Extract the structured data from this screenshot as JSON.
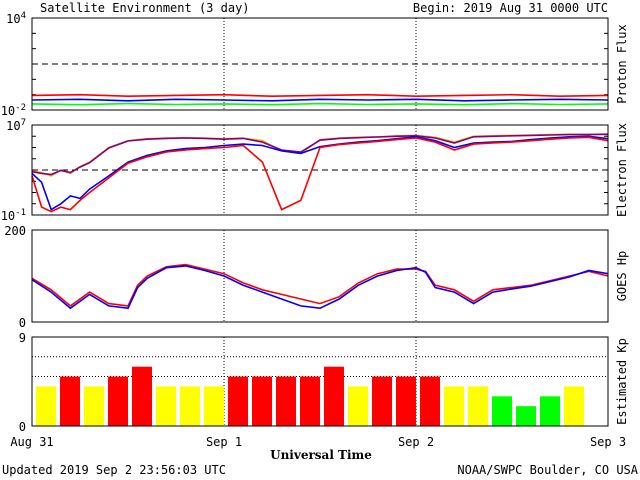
{
  "header": {
    "title": "Satellite Environment (3 day)",
    "begin": "Begin:  2019 Aug 31 0000 UTC"
  },
  "footer": {
    "updated": "Updated 2019 Sep  2 23:56:03 UTC",
    "source": "NOAA/SWPC Boulder, CO USA"
  },
  "colors": {
    "red": "#ff0000",
    "blue": "#0000ff",
    "green": "#00ff00",
    "orange": "#ffa500",
    "purple": "#800080",
    "yellow": "#ffff00"
  },
  "chart_data": [
    {
      "type": "line",
      "name": "proton",
      "ylabel": "Proton Flux",
      "yscale": "log",
      "ylim": [
        0.01,
        10000
      ],
      "ytick_labels": [
        {
          "base": "10",
          "exp": "4",
          "value": 10000
        },
        {
          "base": "10",
          "exp": "-2",
          "value": 0.01
        }
      ],
      "threshold": 10,
      "x": [
        0,
        0.25,
        0.5,
        0.75,
        1.0,
        1.25,
        1.5,
        1.75,
        2.0,
        2.25,
        2.5,
        2.75,
        3.0
      ],
      "series": [
        {
          "color": "red",
          "values": [
            0.09,
            0.1,
            0.08,
            0.09,
            0.1,
            0.08,
            0.09,
            0.1,
            0.08,
            0.09,
            0.1,
            0.08,
            0.09
          ]
        },
        {
          "color": "blue",
          "values": [
            0.045,
            0.05,
            0.04,
            0.05,
            0.045,
            0.04,
            0.05,
            0.045,
            0.05,
            0.04,
            0.045,
            0.05,
            0.045
          ]
        },
        {
          "color": "green",
          "values": [
            0.025,
            0.022,
            0.026,
            0.023,
            0.025,
            0.022,
            0.026,
            0.023,
            0.025,
            0.022,
            0.026,
            0.023,
            0.025
          ]
        }
      ]
    },
    {
      "type": "line",
      "name": "electron",
      "ylabel": "Electron Flux",
      "yscale": "log",
      "ylim": [
        0.1,
        10000000
      ],
      "ytick_labels": [
        {
          "base": "10",
          "exp": "7",
          "value": 10000000
        },
        {
          "base": "10",
          "exp": "-1",
          "value": 0.1
        }
      ],
      "threshold": 1000,
      "x": [
        0,
        0.05,
        0.1,
        0.15,
        0.2,
        0.25,
        0.3,
        0.4,
        0.5,
        0.6,
        0.7,
        0.8,
        0.9,
        1.0,
        1.1,
        1.2,
        1.3,
        1.4,
        1.5,
        1.6,
        1.7,
        1.8,
        1.9,
        2.0,
        2.1,
        2.2,
        2.3,
        2.4,
        2.5,
        2.6,
        2.7,
        2.8,
        2.9,
        3.0
      ],
      "series": [
        {
          "color": "orange",
          "values": [
            800,
            600,
            300,
            1000,
            500,
            2000,
            5000,
            100000,
            400000,
            600000,
            700000,
            750000,
            700000,
            600000,
            700000,
            400000,
            50000,
            30000,
            500000,
            700000,
            800000,
            900000,
            1100000,
            1200000,
            800000,
            300000,
            1000000,
            1100000,
            1200000,
            1300000,
            1400000,
            1500000,
            1500000,
            1600000
          ]
        },
        {
          "color": "purple",
          "values": [
            700,
            500,
            400,
            900,
            600,
            1800,
            4500,
            90000,
            380000,
            550000,
            650000,
            700000,
            650000,
            550000,
            650000,
            300000,
            60000,
            40000,
            450000,
            650000,
            750000,
            850000,
            1000000,
            1100000,
            700000,
            250000,
            900000,
            1000000,
            1100000,
            1200000,
            1300000,
            1400000,
            1400000,
            1500000
          ]
        },
        {
          "color": "blue",
          "values": [
            500,
            80,
            0.3,
            1,
            5,
            3,
            20,
            300,
            5000,
            20000,
            50000,
            80000,
            100000,
            150000,
            200000,
            150000,
            50000,
            30000,
            120000,
            200000,
            300000,
            400000,
            600000,
            900000,
            400000,
            100000,
            250000,
            300000,
            350000,
            500000,
            700000,
            900000,
            1000000,
            600000
          ]
        },
        {
          "color": "red",
          "values": [
            300,
            0.5,
            0.2,
            0.5,
            0.3,
            2,
            10,
            200,
            4000,
            15000,
            40000,
            60000,
            80000,
            100000,
            150000,
            5000,
            0.3,
            2,
            100000,
            180000,
            250000,
            350000,
            500000,
            700000,
            300000,
            60000,
            200000,
            250000,
            300000,
            400000,
            550000,
            700000,
            800000,
            400000
          ]
        }
      ]
    },
    {
      "type": "line",
      "name": "goes-hp",
      "ylabel": "GOES Hp",
      "ylim": [
        0,
        200
      ],
      "ytick_labels": [
        {
          "text": "200",
          "value": 200
        },
        {
          "text": "0",
          "value": 0
        }
      ],
      "x": [
        0,
        0.1,
        0.2,
        0.3,
        0.4,
        0.5,
        0.55,
        0.6,
        0.7,
        0.8,
        0.9,
        1.0,
        1.1,
        1.2,
        1.3,
        1.4,
        1.5,
        1.6,
        1.7,
        1.8,
        1.9,
        2.0,
        2.05,
        2.1,
        2.2,
        2.3,
        2.4,
        2.5,
        2.6,
        2.7,
        2.8,
        2.9,
        3.0
      ],
      "series": [
        {
          "color": "red",
          "values": [
            95,
            70,
            35,
            65,
            40,
            35,
            80,
            100,
            120,
            125,
            115,
            105,
            85,
            70,
            60,
            50,
            40,
            55,
            85,
            105,
            115,
            115,
            110,
            80,
            70,
            45,
            70,
            75,
            80,
            90,
            100,
            110,
            100
          ]
        },
        {
          "color": "blue",
          "values": [
            92,
            65,
            30,
            60,
            35,
            30,
            75,
            95,
            118,
            122,
            112,
            100,
            80,
            65,
            50,
            35,
            30,
            50,
            80,
            100,
            112,
            118,
            108,
            75,
            65,
            40,
            65,
            72,
            78,
            88,
            98,
            112,
            105
          ]
        }
      ]
    },
    {
      "type": "bar",
      "name": "kp",
      "ylabel": "Estimated Kp",
      "ylim": [
        0,
        9
      ],
      "ytick_labels": [
        {
          "text": "9",
          "value": 9
        },
        {
          "text": "0",
          "value": 0
        }
      ],
      "threshold_lines": [
        5,
        7
      ],
      "values": [
        4,
        5,
        4,
        5,
        6,
        4,
        4,
        4,
        5,
        5,
        5,
        5,
        6,
        4,
        5,
        5,
        5,
        4,
        4,
        3,
        2,
        3,
        4
      ],
      "colors": [
        "yellow",
        "red",
        "yellow",
        "red",
        "red",
        "yellow",
        "yellow",
        "yellow",
        "red",
        "red",
        "red",
        "red",
        "red",
        "yellow",
        "red",
        "red",
        "red",
        "yellow",
        "yellow",
        "green",
        "green",
        "green",
        "yellow"
      ]
    }
  ],
  "x_axis": {
    "label": "Universal Time",
    "ticks": [
      {
        "label": "Aug 31",
        "value": 0
      },
      {
        "label": "Sep 1",
        "value": 1
      },
      {
        "label": "Sep 2",
        "value": 2
      },
      {
        "label": "Sep 3",
        "value": 3
      }
    ],
    "range": [
      0,
      3
    ]
  }
}
